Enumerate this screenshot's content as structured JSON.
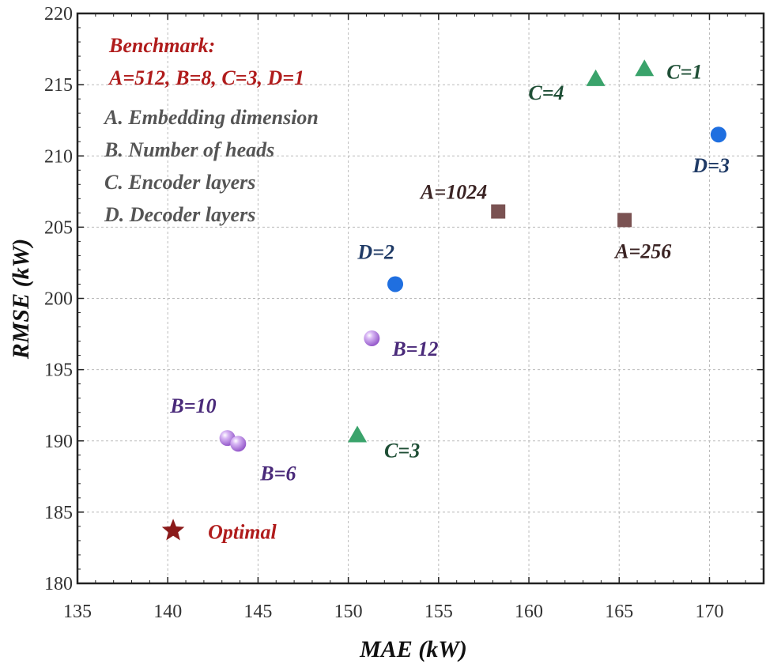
{
  "chart_data": {
    "type": "scatter",
    "title": "",
    "xlabel": "MAE (kW)",
    "ylabel": "RMSE (kW)",
    "xlim": [
      135,
      173
    ],
    "ylim": [
      180,
      220
    ],
    "xticks": [
      135,
      140,
      145,
      150,
      155,
      160,
      165,
      170
    ],
    "yticks": [
      180,
      185,
      190,
      195,
      200,
      205,
      210,
      215,
      220
    ],
    "grid": true,
    "legend_title": "Benchmark:",
    "legend_benchmark": "A=512, B=8, C=3, D=1",
    "legend_items": [
      "A. Embedding dimension",
      "B. Number of heads",
      "C. Encoder layers",
      "D. Decoder layers"
    ],
    "series": [
      {
        "name": "A. Embedding dimension",
        "marker": "square",
        "color": "#7a5252",
        "label_color": "#3a2323",
        "points": [
          {
            "label": "A=1024",
            "x": 158.3,
            "y": 206.1,
            "anchor": "end",
            "dx": -14,
            "dy": -16
          },
          {
            "label": "A=256",
            "x": 165.3,
            "y": 205.5,
            "anchor": "start",
            "dx": -12,
            "dy": 48
          }
        ]
      },
      {
        "name": "B. Number of heads",
        "marker": "sphere",
        "color": "#b27de0",
        "label_color": "#4a2a7a",
        "points": [
          {
            "label": "B=12",
            "x": 151.3,
            "y": 197.2,
            "anchor": "start",
            "dx": 26,
            "dy": 22
          },
          {
            "label": "B=10",
            "x": 143.3,
            "y": 190.2,
            "anchor": "end",
            "dx": -14,
            "dy": -32
          },
          {
            "label": "B=6",
            "x": 143.9,
            "y": 189.8,
            "anchor": "start",
            "dx": 28,
            "dy": 46
          }
        ]
      },
      {
        "name": "C. Encoder layers",
        "marker": "triangle",
        "color": "#3aa36b",
        "label_color": "#1f4f36",
        "points": [
          {
            "label": "C=4",
            "x": 163.7,
            "y": 215.4,
            "anchor": "end",
            "dx": -40,
            "dy": 26
          },
          {
            "label": "C=1",
            "x": 166.4,
            "y": 216.1,
            "anchor": "start",
            "dx": 28,
            "dy": 12
          },
          {
            "label": "C=3",
            "x": 150.5,
            "y": 190.4,
            "anchor": "start",
            "dx": 34,
            "dy": 28
          }
        ]
      },
      {
        "name": "D. Decoder layers",
        "marker": "circle",
        "color": "#1f6fe0",
        "label_color": "#1f3a66",
        "points": [
          {
            "label": "D=3",
            "x": 170.5,
            "y": 211.5,
            "anchor": "end",
            "dx": 14,
            "dy": 48
          },
          {
            "label": "D=2",
            "x": 152.6,
            "y": 201.0,
            "anchor": "end",
            "dx": -1,
            "dy": -32
          }
        ]
      },
      {
        "name": "Optimal",
        "marker": "star",
        "color": "#8b1a1a",
        "label_color": "#b01c1c",
        "points": [
          {
            "label": "Optimal",
            "x": 140.3,
            "y": 183.7,
            "anchor": "start",
            "dx": 44,
            "dy": 10
          }
        ]
      }
    ],
    "colors": {
      "legend_title": "#b01c1c",
      "legend_benchmark": "#b01c1c",
      "legend_items": "#555555",
      "grid": "#bbbbbb",
      "axis": "#222222"
    }
  }
}
